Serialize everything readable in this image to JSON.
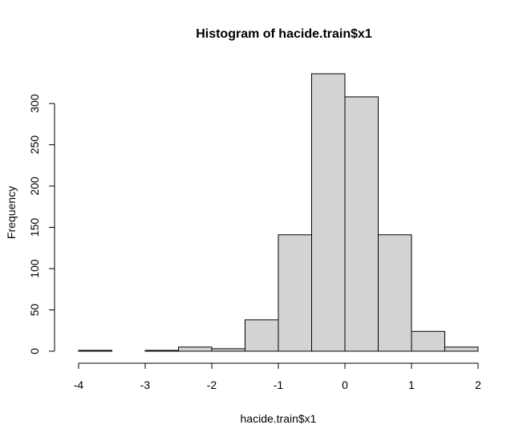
{
  "chart_data": {
    "type": "bar",
    "title": "Histogram of hacide.train$x1",
    "xlabel": "hacide.train$x1",
    "ylabel": "Frequency",
    "bin_edges": [
      -4,
      -3.5,
      -3,
      -2.5,
      -2,
      -1.5,
      -1,
      -0.5,
      0,
      0.5,
      1,
      1.5,
      2
    ],
    "values": [
      1,
      0,
      1,
      5,
      3,
      38,
      141,
      336,
      308,
      141,
      24,
      5
    ],
    "xlim": [
      -4,
      2
    ],
    "ylim": [
      0,
      336
    ],
    "x_ticks": [
      -4,
      -3,
      -2,
      -1,
      0,
      1,
      2
    ],
    "y_ticks": [
      0,
      50,
      100,
      150,
      200,
      250,
      300
    ],
    "bar_fill": "#d3d3d3",
    "bar_stroke": "#000000",
    "grid": false,
    "legend": "none"
  }
}
